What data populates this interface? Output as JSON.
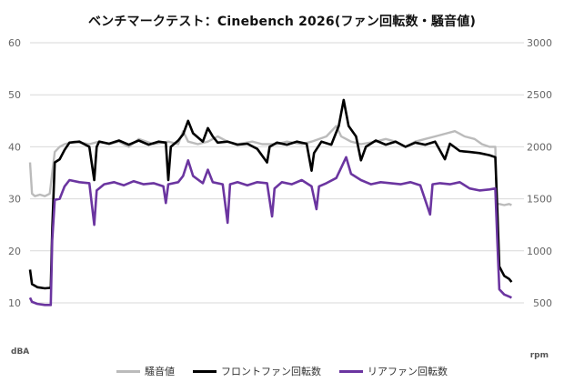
{
  "chart_data": {
    "type": "line",
    "title": "ベンチマークテスト：Cinebench 2026(ファン回転数・騒音値)",
    "y_left": {
      "unit": "dBA",
      "min": 10,
      "max": 60,
      "ticks": [
        10,
        20,
        30,
        40,
        50,
        60
      ]
    },
    "y_right": {
      "unit": "rpm",
      "min": 500,
      "max": 3000,
      "ticks": [
        500,
        1000,
        1500,
        2000,
        2500,
        3000
      ]
    },
    "grid": true,
    "legend_position": "bottom",
    "x": {
      "min": 0,
      "max": 100
    },
    "series": [
      {
        "name": "騒音値",
        "axis": "left",
        "color": "#bbbbbb",
        "points": [
          [
            0,
            37
          ],
          [
            0.4,
            31
          ],
          [
            1,
            30.5
          ],
          [
            2,
            30.8
          ],
          [
            3,
            30.5
          ],
          [
            4,
            31
          ],
          [
            4.5,
            35
          ],
          [
            5,
            39
          ],
          [
            6,
            40
          ],
          [
            7,
            40.5
          ],
          [
            9,
            41
          ],
          [
            12,
            40.5
          ],
          [
            14,
            41
          ],
          [
            16,
            40.5
          ],
          [
            18,
            41
          ],
          [
            20,
            40
          ],
          [
            22,
            41.5
          ],
          [
            25,
            40.5
          ],
          [
            28,
            41
          ],
          [
            30,
            40.5
          ],
          [
            31,
            43
          ],
          [
            32,
            41
          ],
          [
            34,
            40.5
          ],
          [
            36,
            41
          ],
          [
            38,
            42
          ],
          [
            40,
            41
          ],
          [
            42,
            40.5
          ],
          [
            45,
            41
          ],
          [
            47,
            40.5
          ],
          [
            50,
            40.5
          ],
          [
            52,
            41
          ],
          [
            55,
            40.5
          ],
          [
            57,
            41
          ],
          [
            60,
            42
          ],
          [
            62,
            44
          ],
          [
            63,
            42
          ],
          [
            65,
            41
          ],
          [
            67,
            40.5
          ],
          [
            70,
            41
          ],
          [
            72,
            41.5
          ],
          [
            74,
            41
          ],
          [
            76,
            40
          ],
          [
            78,
            41
          ],
          [
            80,
            41.5
          ],
          [
            82,
            42
          ],
          [
            84,
            42.5
          ],
          [
            86,
            43
          ],
          [
            88,
            42
          ],
          [
            90,
            41.5
          ],
          [
            91.5,
            40.5
          ],
          [
            93,
            40
          ],
          [
            94.2,
            40
          ],
          [
            94.5,
            29
          ],
          [
            95,
            29
          ],
          [
            96,
            28.8
          ],
          [
            97,
            29
          ],
          [
            97.5,
            28.8
          ]
        ]
      },
      {
        "name": "フロントファン回転数",
        "axis": "right",
        "color": "#000000",
        "points": [
          [
            0,
            820
          ],
          [
            0.4,
            680
          ],
          [
            1.5,
            650
          ],
          [
            3,
            640
          ],
          [
            4.2,
            645
          ],
          [
            4.5,
            1200
          ],
          [
            5,
            1850
          ],
          [
            6,
            1880
          ],
          [
            7,
            1970
          ],
          [
            8,
            2040
          ],
          [
            10,
            2050
          ],
          [
            12,
            2000
          ],
          [
            13,
            1680
          ],
          [
            13.5,
            2000
          ],
          [
            14,
            2050
          ],
          [
            16,
            2030
          ],
          [
            18,
            2060
          ],
          [
            20,
            2020
          ],
          [
            22,
            2060
          ],
          [
            24,
            2020
          ],
          [
            26,
            2050
          ],
          [
            27.5,
            2040
          ],
          [
            28,
            1680
          ],
          [
            28.5,
            2000
          ],
          [
            30,
            2060
          ],
          [
            31,
            2120
          ],
          [
            32,
            2250
          ],
          [
            33,
            2130
          ],
          [
            35,
            2050
          ],
          [
            36,
            2180
          ],
          [
            37,
            2100
          ],
          [
            38,
            2040
          ],
          [
            40,
            2050
          ],
          [
            42,
            2020
          ],
          [
            44,
            2030
          ],
          [
            46,
            1980
          ],
          [
            48,
            1850
          ],
          [
            48.5,
            2000
          ],
          [
            50,
            2040
          ],
          [
            52,
            2020
          ],
          [
            54,
            2050
          ],
          [
            56,
            2030
          ],
          [
            57,
            1770
          ],
          [
            57.5,
            1940
          ],
          [
            59,
            2050
          ],
          [
            61,
            2020
          ],
          [
            62.5,
            2200
          ],
          [
            63.5,
            2450
          ],
          [
            64.5,
            2200
          ],
          [
            66,
            2100
          ],
          [
            67,
            1870
          ],
          [
            68,
            2000
          ],
          [
            70,
            2060
          ],
          [
            72,
            2020
          ],
          [
            74,
            2050
          ],
          [
            76,
            2000
          ],
          [
            78,
            2040
          ],
          [
            80,
            2020
          ],
          [
            82,
            2050
          ],
          [
            84,
            1880
          ],
          [
            85,
            2030
          ],
          [
            87,
            1960
          ],
          [
            89,
            1950
          ],
          [
            91,
            1940
          ],
          [
            93,
            1920
          ],
          [
            94.2,
            1900
          ],
          [
            94.6,
            1400
          ],
          [
            95,
            850
          ],
          [
            96,
            760
          ],
          [
            97,
            730
          ],
          [
            97.5,
            700
          ]
        ]
      },
      {
        "name": "リアファン回転数",
        "axis": "right",
        "color": "#6b35a0",
        "points": [
          [
            0,
            550
          ],
          [
            0.4,
            510
          ],
          [
            1.5,
            490
          ],
          [
            3,
            480
          ],
          [
            4.2,
            480
          ],
          [
            4.5,
            1100
          ],
          [
            5,
            1490
          ],
          [
            6,
            1500
          ],
          [
            7,
            1620
          ],
          [
            8,
            1680
          ],
          [
            10,
            1660
          ],
          [
            12,
            1650
          ],
          [
            13,
            1250
          ],
          [
            13.5,
            1580
          ],
          [
            15,
            1640
          ],
          [
            17,
            1660
          ],
          [
            19,
            1630
          ],
          [
            21,
            1670
          ],
          [
            23,
            1640
          ],
          [
            25,
            1650
          ],
          [
            27,
            1620
          ],
          [
            27.5,
            1460
          ],
          [
            28,
            1640
          ],
          [
            30,
            1660
          ],
          [
            31,
            1720
          ],
          [
            32,
            1870
          ],
          [
            33,
            1720
          ],
          [
            35,
            1650
          ],
          [
            36,
            1780
          ],
          [
            37,
            1660
          ],
          [
            39,
            1640
          ],
          [
            40,
            1270
          ],
          [
            40.5,
            1640
          ],
          [
            42,
            1660
          ],
          [
            44,
            1630
          ],
          [
            46,
            1660
          ],
          [
            48,
            1650
          ],
          [
            49,
            1330
          ],
          [
            49.5,
            1600
          ],
          [
            51,
            1660
          ],
          [
            53,
            1640
          ],
          [
            55,
            1680
          ],
          [
            57,
            1620
          ],
          [
            58,
            1400
          ],
          [
            58.5,
            1620
          ],
          [
            60,
            1650
          ],
          [
            62,
            1700
          ],
          [
            63,
            1800
          ],
          [
            64,
            1900
          ],
          [
            65,
            1740
          ],
          [
            67,
            1680
          ],
          [
            69,
            1640
          ],
          [
            71,
            1660
          ],
          [
            73,
            1650
          ],
          [
            75,
            1640
          ],
          [
            77,
            1660
          ],
          [
            79,
            1630
          ],
          [
            81,
            1350
          ],
          [
            81.5,
            1640
          ],
          [
            83,
            1650
          ],
          [
            85,
            1640
          ],
          [
            87,
            1660
          ],
          [
            89,
            1600
          ],
          [
            91,
            1580
          ],
          [
            93,
            1590
          ],
          [
            94.2,
            1600
          ],
          [
            94.6,
            1100
          ],
          [
            95,
            630
          ],
          [
            96,
            580
          ],
          [
            97,
            560
          ],
          [
            97.5,
            550
          ]
        ]
      }
    ]
  }
}
